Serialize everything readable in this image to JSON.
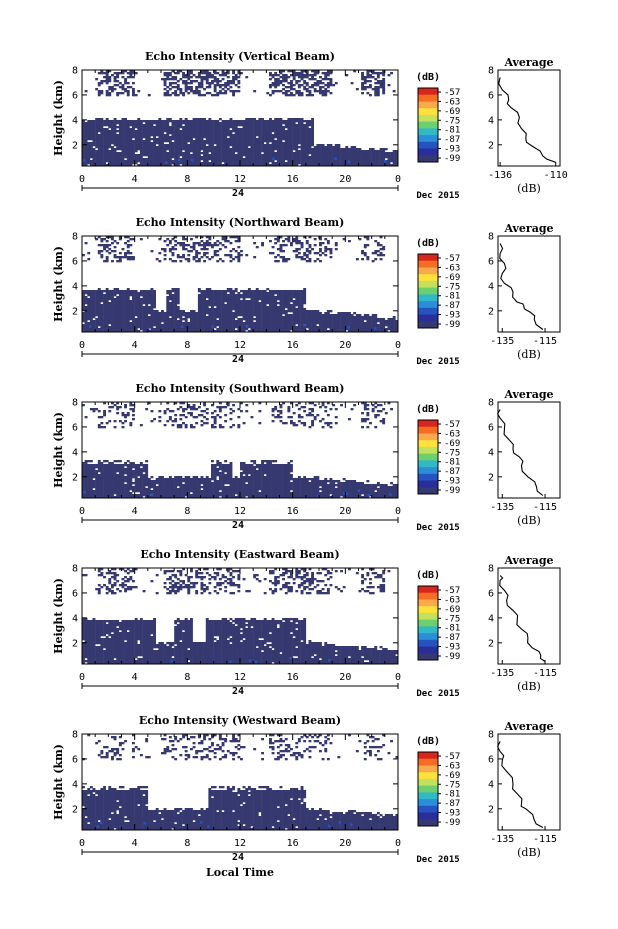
{
  "panels": [
    {
      "title": "Echo Intensity (Vertical Beam)",
      "profile": [
        [
          -110,
          0.6
        ],
        [
          -116,
          1.1
        ],
        [
          -121,
          1.9
        ],
        [
          -124,
          2.5
        ],
        [
          -126,
          3.3
        ],
        [
          -127,
          4.2
        ],
        [
          -131,
          5.0
        ],
        [
          -132,
          5.6
        ],
        [
          -135,
          6.4
        ],
        [
          -136,
          7.4
        ]
      ],
      "av_xticks": [
        "-136",
        "-110"
      ],
      "echo": {
        "lowtop": 3.9,
        "lowright": 17.5,
        "upperdense": 0.55,
        "gaps": []
      }
    },
    {
      "title": "Echo Intensity (Northward Beam)",
      "profile": [
        [
          -116,
          0.5
        ],
        [
          -120,
          1.3
        ],
        [
          -122,
          1.9
        ],
        [
          -125,
          2.4
        ],
        [
          -128,
          2.7
        ],
        [
          -130,
          3.5
        ],
        [
          -134,
          4.2
        ],
        [
          -135,
          5.0
        ],
        [
          -134,
          5.8
        ],
        [
          -136,
          6.6
        ],
        [
          -136,
          7.4
        ]
      ],
      "av_xticks": [
        "-135",
        "-115"
      ],
      "echo": {
        "lowtop": 3.6,
        "lowright": 17.0,
        "upperdense": 0.35,
        "gaps": [
          [
            5.5,
            6.3
          ],
          [
            7.3,
            8.6
          ]
        ]
      }
    },
    {
      "title": "Echo Intensity (Southward Beam)",
      "profile": [
        [
          -116,
          0.5
        ],
        [
          -119,
          1.2
        ],
        [
          -123,
          2.0
        ],
        [
          -126,
          2.9
        ],
        [
          -127,
          3.6
        ],
        [
          -130,
          4.2
        ],
        [
          -132,
          5.0
        ],
        [
          -134,
          5.8
        ],
        [
          -136,
          6.7
        ],
        [
          -136,
          7.4
        ]
      ],
      "av_xticks": [
        "-135",
        "-115"
      ],
      "echo": {
        "lowtop": 3.0,
        "lowright": 16.0,
        "upperdense": 0.28,
        "gaps": [
          [
            5.0,
            9.6
          ],
          [
            11.3,
            11.8
          ]
        ]
      }
    },
    {
      "title": "Echo Intensity (Eastward Beam)",
      "profile": [
        [
          -115,
          0.5
        ],
        [
          -117,
          1.0
        ],
        [
          -121,
          1.6
        ],
        [
          -123,
          2.4
        ],
        [
          -126,
          3.1
        ],
        [
          -128,
          3.8
        ],
        [
          -130,
          4.6
        ],
        [
          -133,
          5.4
        ],
        [
          -134,
          6.2
        ],
        [
          -136,
          7.0
        ],
        [
          -136,
          7.4
        ]
      ],
      "av_xticks": [
        "-135",
        "-115"
      ],
      "echo": {
        "lowtop": 3.7,
        "lowright": 17.0,
        "upperdense": 0.4,
        "gaps": [
          [
            5.5,
            6.8
          ],
          [
            8.4,
            9.2
          ]
        ]
      }
    },
    {
      "title": "Echo Intensity (Westward Beam)",
      "profile": [
        [
          -116,
          0.5
        ],
        [
          -120,
          1.1
        ],
        [
          -124,
          2.0
        ],
        [
          -126,
          2.4
        ],
        [
          -128,
          3.2
        ],
        [
          -130,
          4.0
        ],
        [
          -133,
          5.0
        ],
        [
          -135,
          5.9
        ],
        [
          -136,
          6.6
        ],
        [
          -136,
          7.4
        ]
      ],
      "av_xticks": [
        "-135",
        "-115"
      ],
      "echo": {
        "lowtop": 3.5,
        "lowright": 17.0,
        "upperdense": 0.25,
        "gaps": [
          [
            5.0,
            9.5
          ]
        ]
      }
    }
  ],
  "y_ticks": [
    "2",
    "4",
    "6",
    "8"
  ],
  "x_ticks": [
    "0",
    "4",
    "8",
    "12",
    "16",
    "20",
    "0"
  ],
  "ylabel": "Height (km)",
  "date_mark": "24",
  "date_label": "Dec 2015",
  "colorbar": {
    "unit": "(dB)",
    "labels": [
      "-57",
      "-63",
      "-69",
      "-75",
      "-81",
      "-87",
      "-93",
      "-99"
    ],
    "colors": [
      "#d7261e",
      "#f46d22",
      "#fba94d",
      "#fee13c",
      "#c3e15c",
      "#6ecf6e",
      "#32b8c6",
      "#2a8fd8",
      "#2553c0",
      "#2a2e9a",
      "#363870"
    ]
  },
  "av_title": "Average",
  "av_xlabel": "(dB)",
  "xlabel": "Local Time",
  "echo_color": "#363870"
}
